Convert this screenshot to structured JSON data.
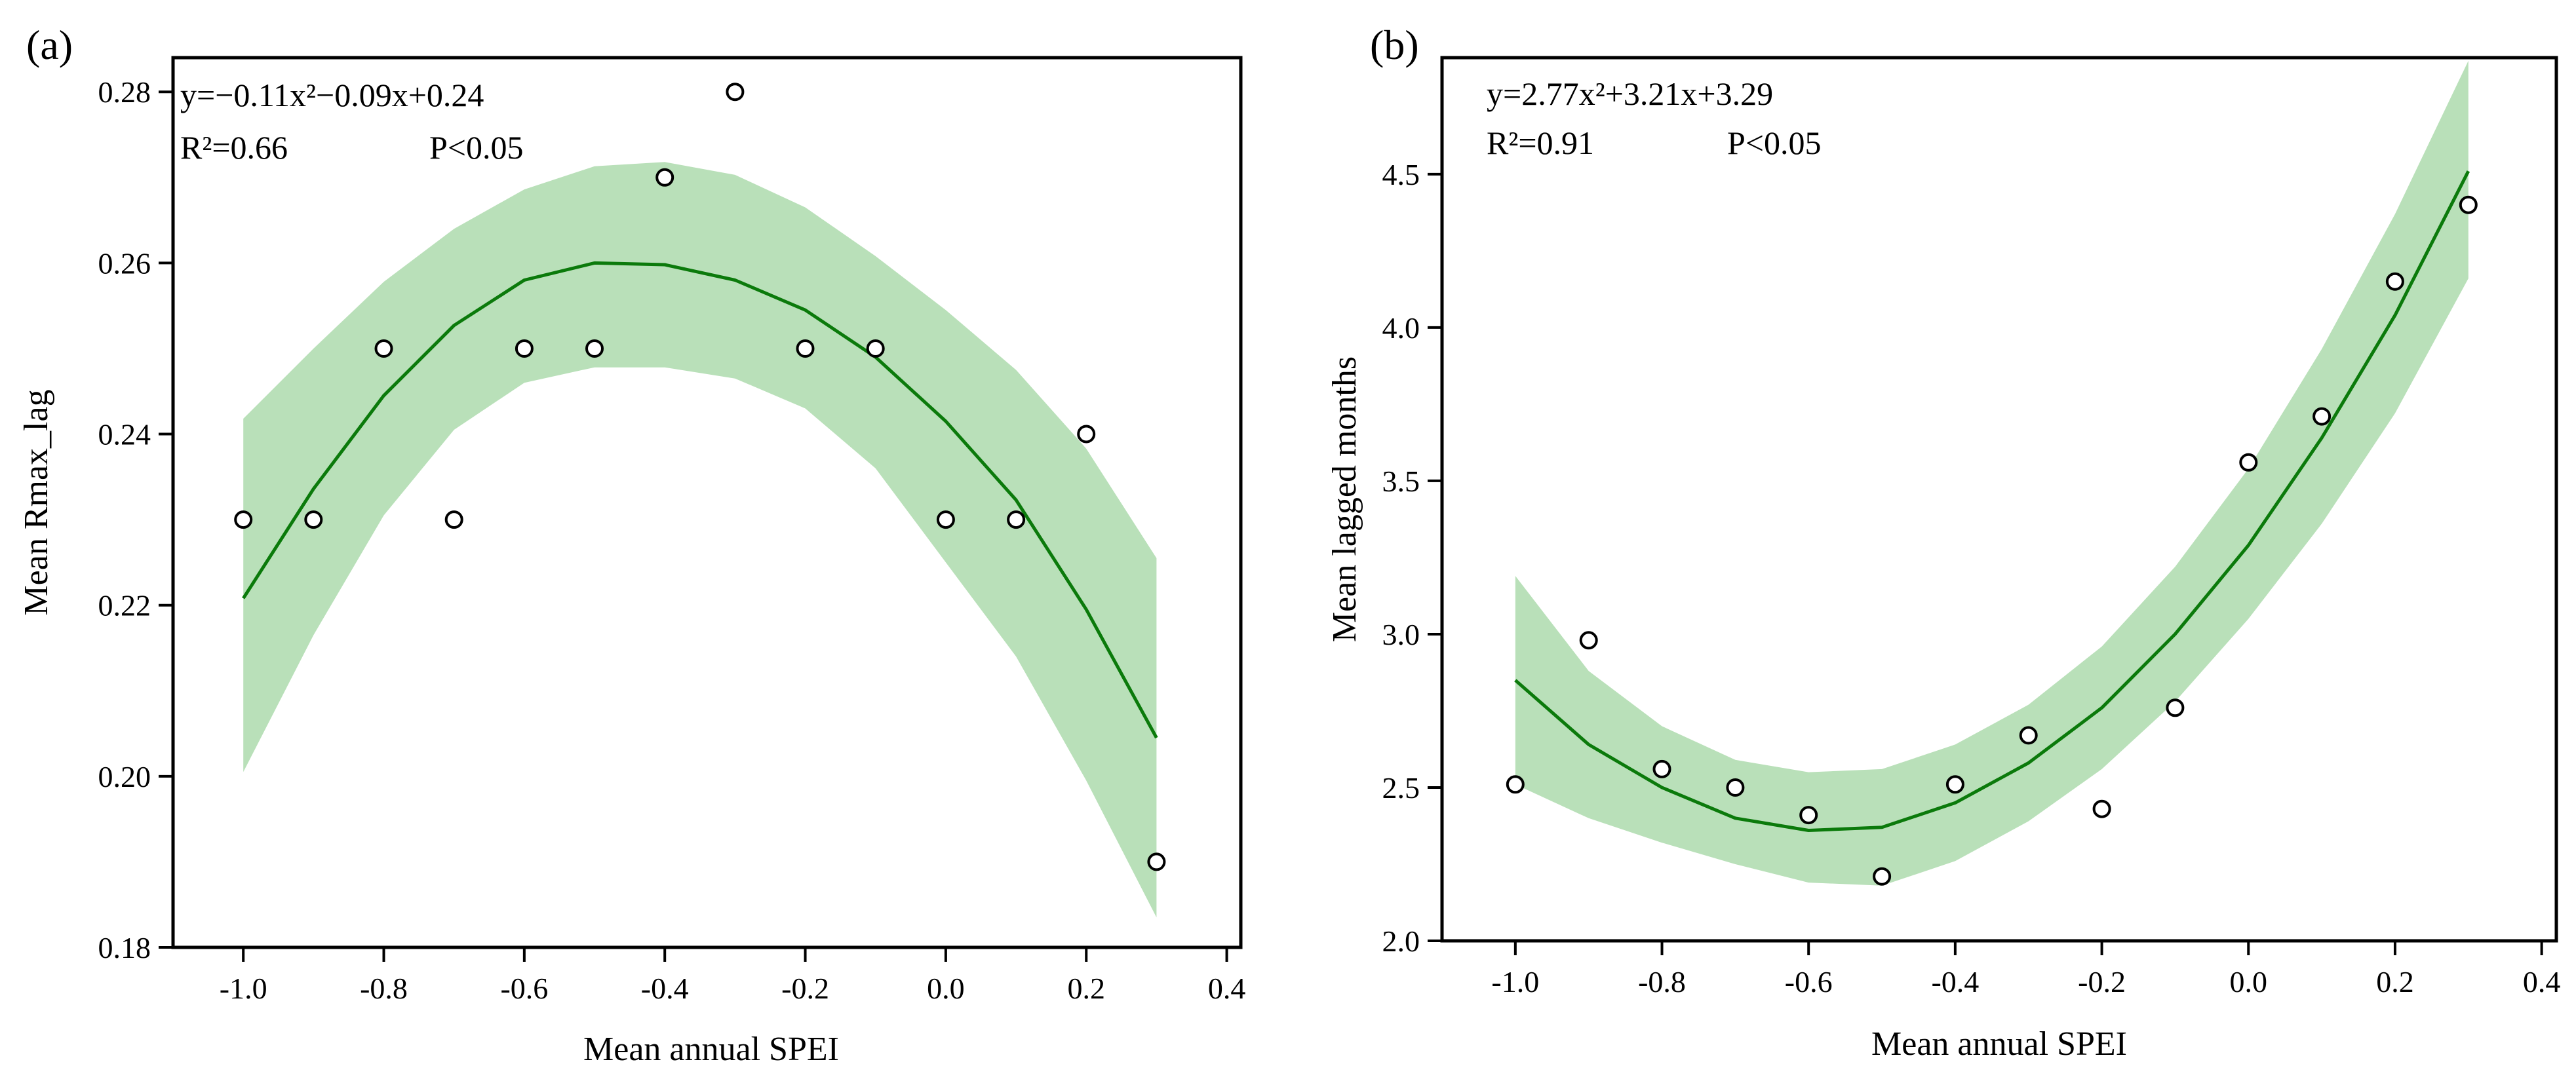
{
  "chart_data": [
    {
      "panel_label": "(a)",
      "type": "scatter",
      "xlabel": "Mean annual SPEI",
      "ylabel": "Mean Rmax_lag",
      "xlim": [
        -1.1,
        0.42
      ],
      "ylim": [
        0.18,
        0.284
      ],
      "xticks": [
        -1.0,
        -0.8,
        -0.6,
        -0.4,
        -0.2,
        0.0,
        0.2,
        0.4
      ],
      "xtick_labels": [
        "-1.0",
        "-0.8",
        "-0.6",
        "-0.4",
        "-0.2",
        "0.0",
        "0.2",
        "0.4"
      ],
      "yticks": [
        0.18,
        0.2,
        0.22,
        0.24,
        0.26,
        0.28
      ],
      "ytick_labels": [
        "0.18",
        "0.20",
        "0.22",
        "0.24",
        "0.26",
        "0.28"
      ],
      "points": {
        "x": [
          -1.0,
          -0.9,
          -0.8,
          -0.7,
          -0.6,
          -0.5,
          -0.4,
          -0.3,
          -0.2,
          -0.1,
          0.0,
          0.1,
          0.2,
          0.3
        ],
        "y": [
          0.23,
          0.23,
          0.25,
          0.23,
          0.25,
          0.25,
          0.27,
          0.28,
          0.25,
          0.25,
          0.23,
          0.23,
          0.24,
          0.19
        ]
      },
      "fit": {
        "equation": "y=−0.11x²−0.09x+0.24",
        "r2_text": "R²=0.66",
        "p_text": "P<0.05",
        "x": [
          -1.0,
          -0.9,
          -0.8,
          -0.7,
          -0.6,
          -0.5,
          -0.4,
          -0.3,
          -0.2,
          -0.1,
          0.0,
          0.1,
          0.2,
          0.3
        ],
        "y": [
          0.2208,
          0.2336,
          0.2445,
          0.2527,
          0.258,
          0.26,
          0.2598,
          0.258,
          0.2545,
          0.249,
          0.2415,
          0.2323,
          0.2195,
          0.2045
        ],
        "lower": [
          0.2005,
          0.2165,
          0.2305,
          0.2405,
          0.246,
          0.2478,
          0.2478,
          0.2465,
          0.243,
          0.236,
          0.225,
          0.214,
          0.1995,
          0.1835
        ],
        "upper": [
          0.2418,
          0.25,
          0.2578,
          0.264,
          0.2686,
          0.2713,
          0.2718,
          0.2703,
          0.2665,
          0.2608,
          0.2545,
          0.2475,
          0.2383,
          0.2255
        ]
      },
      "colors": {
        "fit_line": "#0b7a0b",
        "band": "#b9e0b9",
        "marker_edge": "#000000",
        "marker_fill": "#ffffff"
      }
    },
    {
      "panel_label": "(b)",
      "type": "scatter",
      "xlabel": "Mean annual SPEI",
      "ylabel": "Mean lagged months",
      "xlim": [
        -1.1,
        0.42
      ],
      "ylim": [
        2.0,
        4.88
      ],
      "xticks": [
        -1.0,
        -0.8,
        -0.6,
        -0.4,
        -0.2,
        0.0,
        0.2,
        0.4
      ],
      "xtick_labels": [
        "-1.0",
        "-0.8",
        "-0.6",
        "-0.4",
        "-0.2",
        "0.0",
        "0.2",
        "0.4"
      ],
      "yticks": [
        2.0,
        2.5,
        3.0,
        3.5,
        4.0,
        4.5
      ],
      "ytick_labels": [
        "2.0",
        "2.5",
        "3.0",
        "3.5",
        "4.0",
        "4.5"
      ],
      "points": {
        "x": [
          -1.0,
          -0.9,
          -0.8,
          -0.7,
          -0.6,
          -0.5,
          -0.4,
          -0.3,
          -0.2,
          -0.1,
          0.0,
          0.1,
          0.2,
          0.3
        ],
        "y": [
          2.51,
          2.98,
          2.56,
          2.5,
          2.41,
          2.21,
          2.51,
          2.67,
          2.43,
          2.76,
          3.56,
          3.71,
          4.15,
          4.4
        ]
      },
      "fit": {
        "equation": "y=2.77x²+3.21x+3.29",
        "r2_text": "R²=0.91",
        "p_text": "P<0.05",
        "x": [
          -1.0,
          -0.9,
          -0.8,
          -0.7,
          -0.6,
          -0.5,
          -0.4,
          -0.3,
          -0.2,
          -0.1,
          0.0,
          0.1,
          0.2,
          0.3
        ],
        "y": [
          2.85,
          2.64,
          2.5,
          2.4,
          2.36,
          2.37,
          2.45,
          2.58,
          2.76,
          3.0,
          3.29,
          3.64,
          4.04,
          4.51
        ],
        "lower": [
          2.51,
          2.4,
          2.32,
          2.25,
          2.19,
          2.18,
          2.26,
          2.39,
          2.56,
          2.78,
          3.05,
          3.36,
          3.72,
          4.16
        ],
        "upper": [
          3.19,
          2.88,
          2.7,
          2.59,
          2.55,
          2.56,
          2.64,
          2.77,
          2.96,
          3.22,
          3.54,
          3.93,
          4.37,
          4.87
        ]
      },
      "colors": {
        "fit_line": "#0b7a0b",
        "band": "#b9e0b9",
        "marker_edge": "#000000",
        "marker_fill": "#ffffff"
      }
    }
  ]
}
